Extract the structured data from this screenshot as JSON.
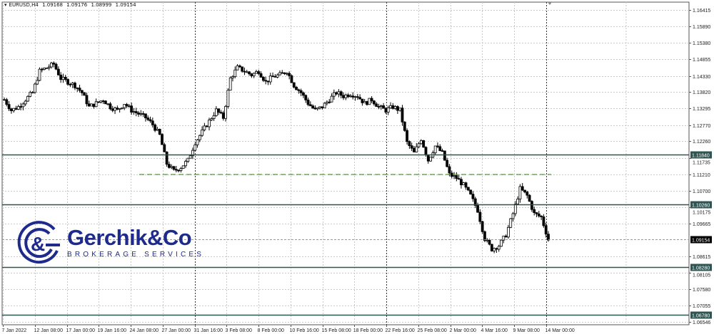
{
  "header": {
    "symbol": "EURUSD,H4",
    "open": "1.09168",
    "high": "1.09176",
    "low": "1.08999",
    "close": "1.09154"
  },
  "logo": {
    "name": "Gerchik&Co",
    "subtitle": "BROKERAGE SERVICES"
  },
  "colors": {
    "candle": "#000000",
    "level_line": "#2f5451",
    "dashed_level": "#5b9a3a",
    "grid": "#c8c8c8",
    "current_price_label": "#000000",
    "level_label": "#2f5451",
    "brand": "#1e2a8c"
  },
  "chart_data": {
    "type": "candlestick",
    "timeframe": "H4",
    "ylim": [
      1.06546,
      1.16415
    ],
    "y_ticks": [
      "1.16415",
      "1.15890",
      "1.15380",
      "1.14855",
      "1.14330",
      "1.13820",
      "1.13295",
      "1.12770",
      "1.12260",
      "1.11735",
      "1.11210",
      "1.10700",
      "1.10175",
      "1.09665",
      "1.08615",
      "1.08105",
      "1.07580",
      "1.07055",
      "1.06546"
    ],
    "x_ticks": [
      "7 Jan 2022",
      "12 Jan 08:00",
      "17 Jan 00:00",
      "19 Jan 16:00",
      "24 Jan 08:00",
      "27 Jan 00:00",
      "31 Jan 16:00",
      "3 Feb 08:00",
      "8 Feb 00:00",
      "10 Feb 16:00",
      "15 Feb 08:00",
      "18 Feb 00:00",
      "22 Feb 16:00",
      "25 Feb 08:00",
      "2 Mar 00:00",
      "4 Mar 16:00",
      "9 Mar 08:00",
      "14 Mar 00:00"
    ],
    "grid": true,
    "closes": [
      1.1358,
      1.1324,
      1.1335,
      1.1358,
      1.138,
      1.1448,
      1.1459,
      1.147,
      1.1425,
      1.1414,
      1.1403,
      1.138,
      1.1335,
      1.1346,
      1.1358,
      1.1335,
      1.1324,
      1.1346,
      1.1324,
      1.1313,
      1.1301,
      1.1279,
      1.1245,
      1.1155,
      1.1132,
      1.1144,
      1.1166,
      1.1222,
      1.1256,
      1.129,
      1.1324,
      1.1301,
      1.1425,
      1.1459,
      1.1448,
      1.1436,
      1.1448,
      1.1414,
      1.143,
      1.1436,
      1.1448,
      1.1403,
      1.138,
      1.1346,
      1.1324,
      1.1335,
      1.1358,
      1.138,
      1.1369,
      1.1376,
      1.1369,
      1.1346,
      1.1358,
      1.1335,
      1.1324,
      1.1335,
      1.1324,
      1.1222,
      1.1189,
      1.1234,
      1.1166,
      1.1211,
      1.1189,
      1.1121,
      1.111,
      1.1087,
      1.1054,
      1.1008,
      1.0918,
      1.0885,
      1.0896,
      1.093,
      1.0997,
      1.1076,
      1.1054,
      1.0997,
      1.0986,
      1.0915
    ],
    "levels": [
      {
        "price": 1.1184,
        "label": "1.11840",
        "style": "solid"
      },
      {
        "price": 1.1026,
        "label": "1.10260",
        "style": "solid"
      },
      {
        "price": 1.0828,
        "label": "1.08280",
        "style": "solid"
      },
      {
        "price": 1.0678,
        "label": "1.06780",
        "style": "solid"
      }
    ],
    "dashed_level": {
      "price": 1.1121,
      "start_tick": "24 Jan 08:00"
    },
    "current_price": {
      "price": 1.09154,
      "label": "1.09154"
    }
  }
}
